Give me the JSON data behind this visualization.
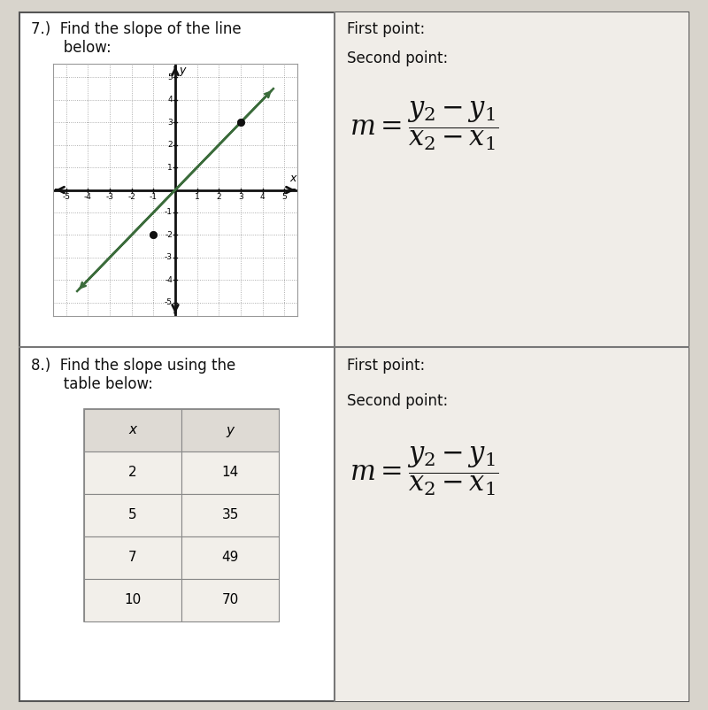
{
  "background_color": "#d8d4cc",
  "panel_color": "#f0ede8",
  "cell_color": "#f5f2ee",
  "border_color": "#555555",
  "title7": "7.)  Find the slope of the line\n       below:",
  "title8": "8.)  Find the slope using the\n       table below:",
  "first_point": "First point:",
  "second_point": "Second point:",
  "grid_range": [
    -5,
    5
  ],
  "line_pts": [
    [
      -4.5,
      -4.5
    ],
    [
      4.5,
      4.5
    ]
  ],
  "dot1": [
    -1,
    -2
  ],
  "dot2": [
    3,
    3
  ],
  "table_headers": [
    "x",
    "y"
  ],
  "table_data": [
    [
      2,
      14
    ],
    [
      5,
      35
    ],
    [
      7,
      49
    ],
    [
      10,
      70
    ]
  ],
  "grid_color": "#aaaaaa",
  "grid_dot_color": "#999999",
  "line_color": "#3a6b3a",
  "axis_color": "#111111",
  "dot_color": "#111111",
  "divider_color": "#777777",
  "text_color": "#111111",
  "table_border": "#888888",
  "table_header_bg": "#dedad4",
  "table_row_bg": "#f2efea"
}
